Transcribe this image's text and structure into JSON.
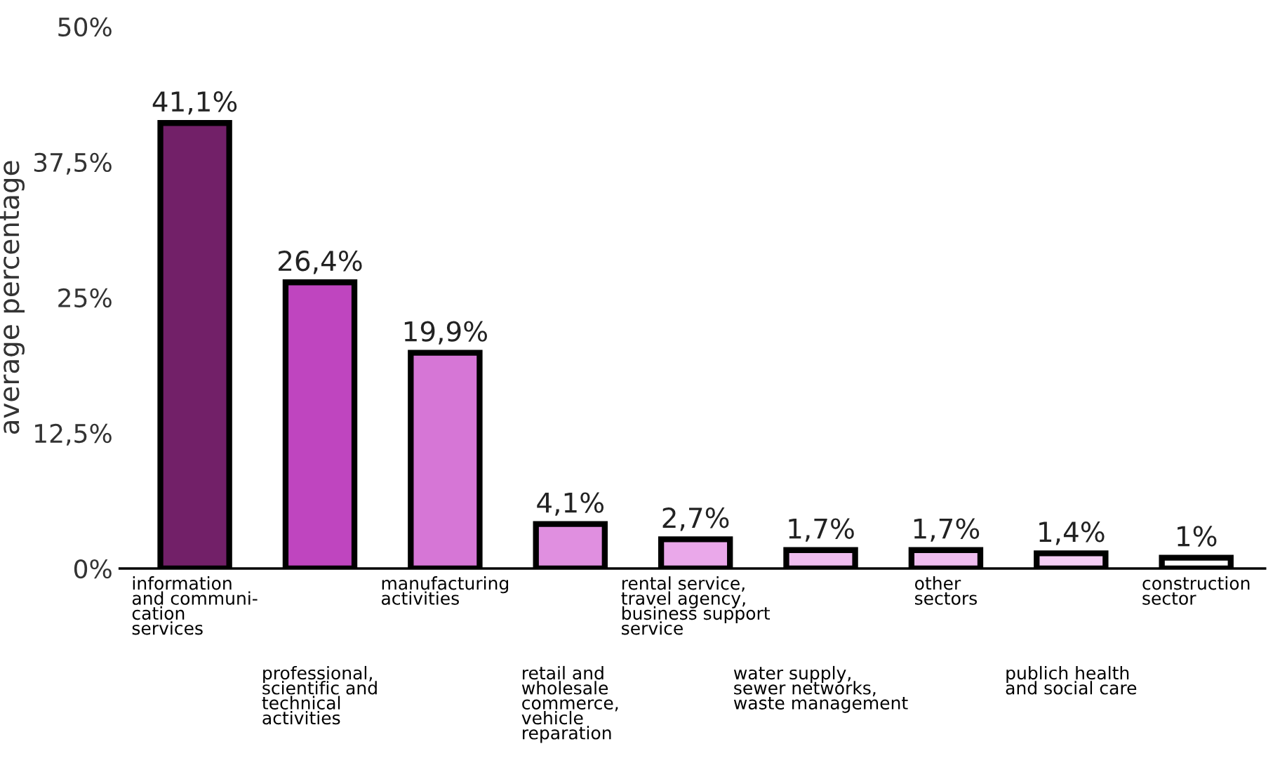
{
  "chart_data": {
    "type": "bar",
    "ylabel": "average percentage",
    "categories": [
      "information\nand communi-\ncation\nservices",
      "professional,\nscientific and\ntechnical\nactivities",
      "manufacturing\nactivities",
      "retail and\nwholesale\ncommerce,\nvehicle\nreparation",
      "rental service,\ntravel agency,\nbusiness support\nservice",
      "water supply,\nsewer networks,\nwaste management",
      "other\nsectors",
      "publich health\nand social care",
      "construction\nsector"
    ],
    "values": [
      41.1,
      26.4,
      19.9,
      4.1,
      2.7,
      1.7,
      1.7,
      1.4,
      1
    ],
    "value_labels": [
      "41,1%",
      "26,4%",
      "19,9%",
      "4,1%",
      "2,7%",
      "1,7%",
      "1,7%",
      "1,4%",
      "1%"
    ],
    "colors": [
      "#722068",
      "#bf45bf",
      "#d676d6",
      "#e08fe0",
      "#eaa8ea",
      "#efbdef",
      "#efbdef",
      "#f4cdf4",
      "#ffffff"
    ],
    "ylim": [
      0,
      50
    ],
    "yticks": [
      {
        "value": 0,
        "label": "0%"
      },
      {
        "value": 12.5,
        "label": "12,5%"
      },
      {
        "value": 25,
        "label": "25%"
      },
      {
        "value": 37.5,
        "label": "37,5%"
      },
      {
        "value": 50,
        "label": "50%"
      }
    ],
    "grid": false,
    "legend": false
  }
}
